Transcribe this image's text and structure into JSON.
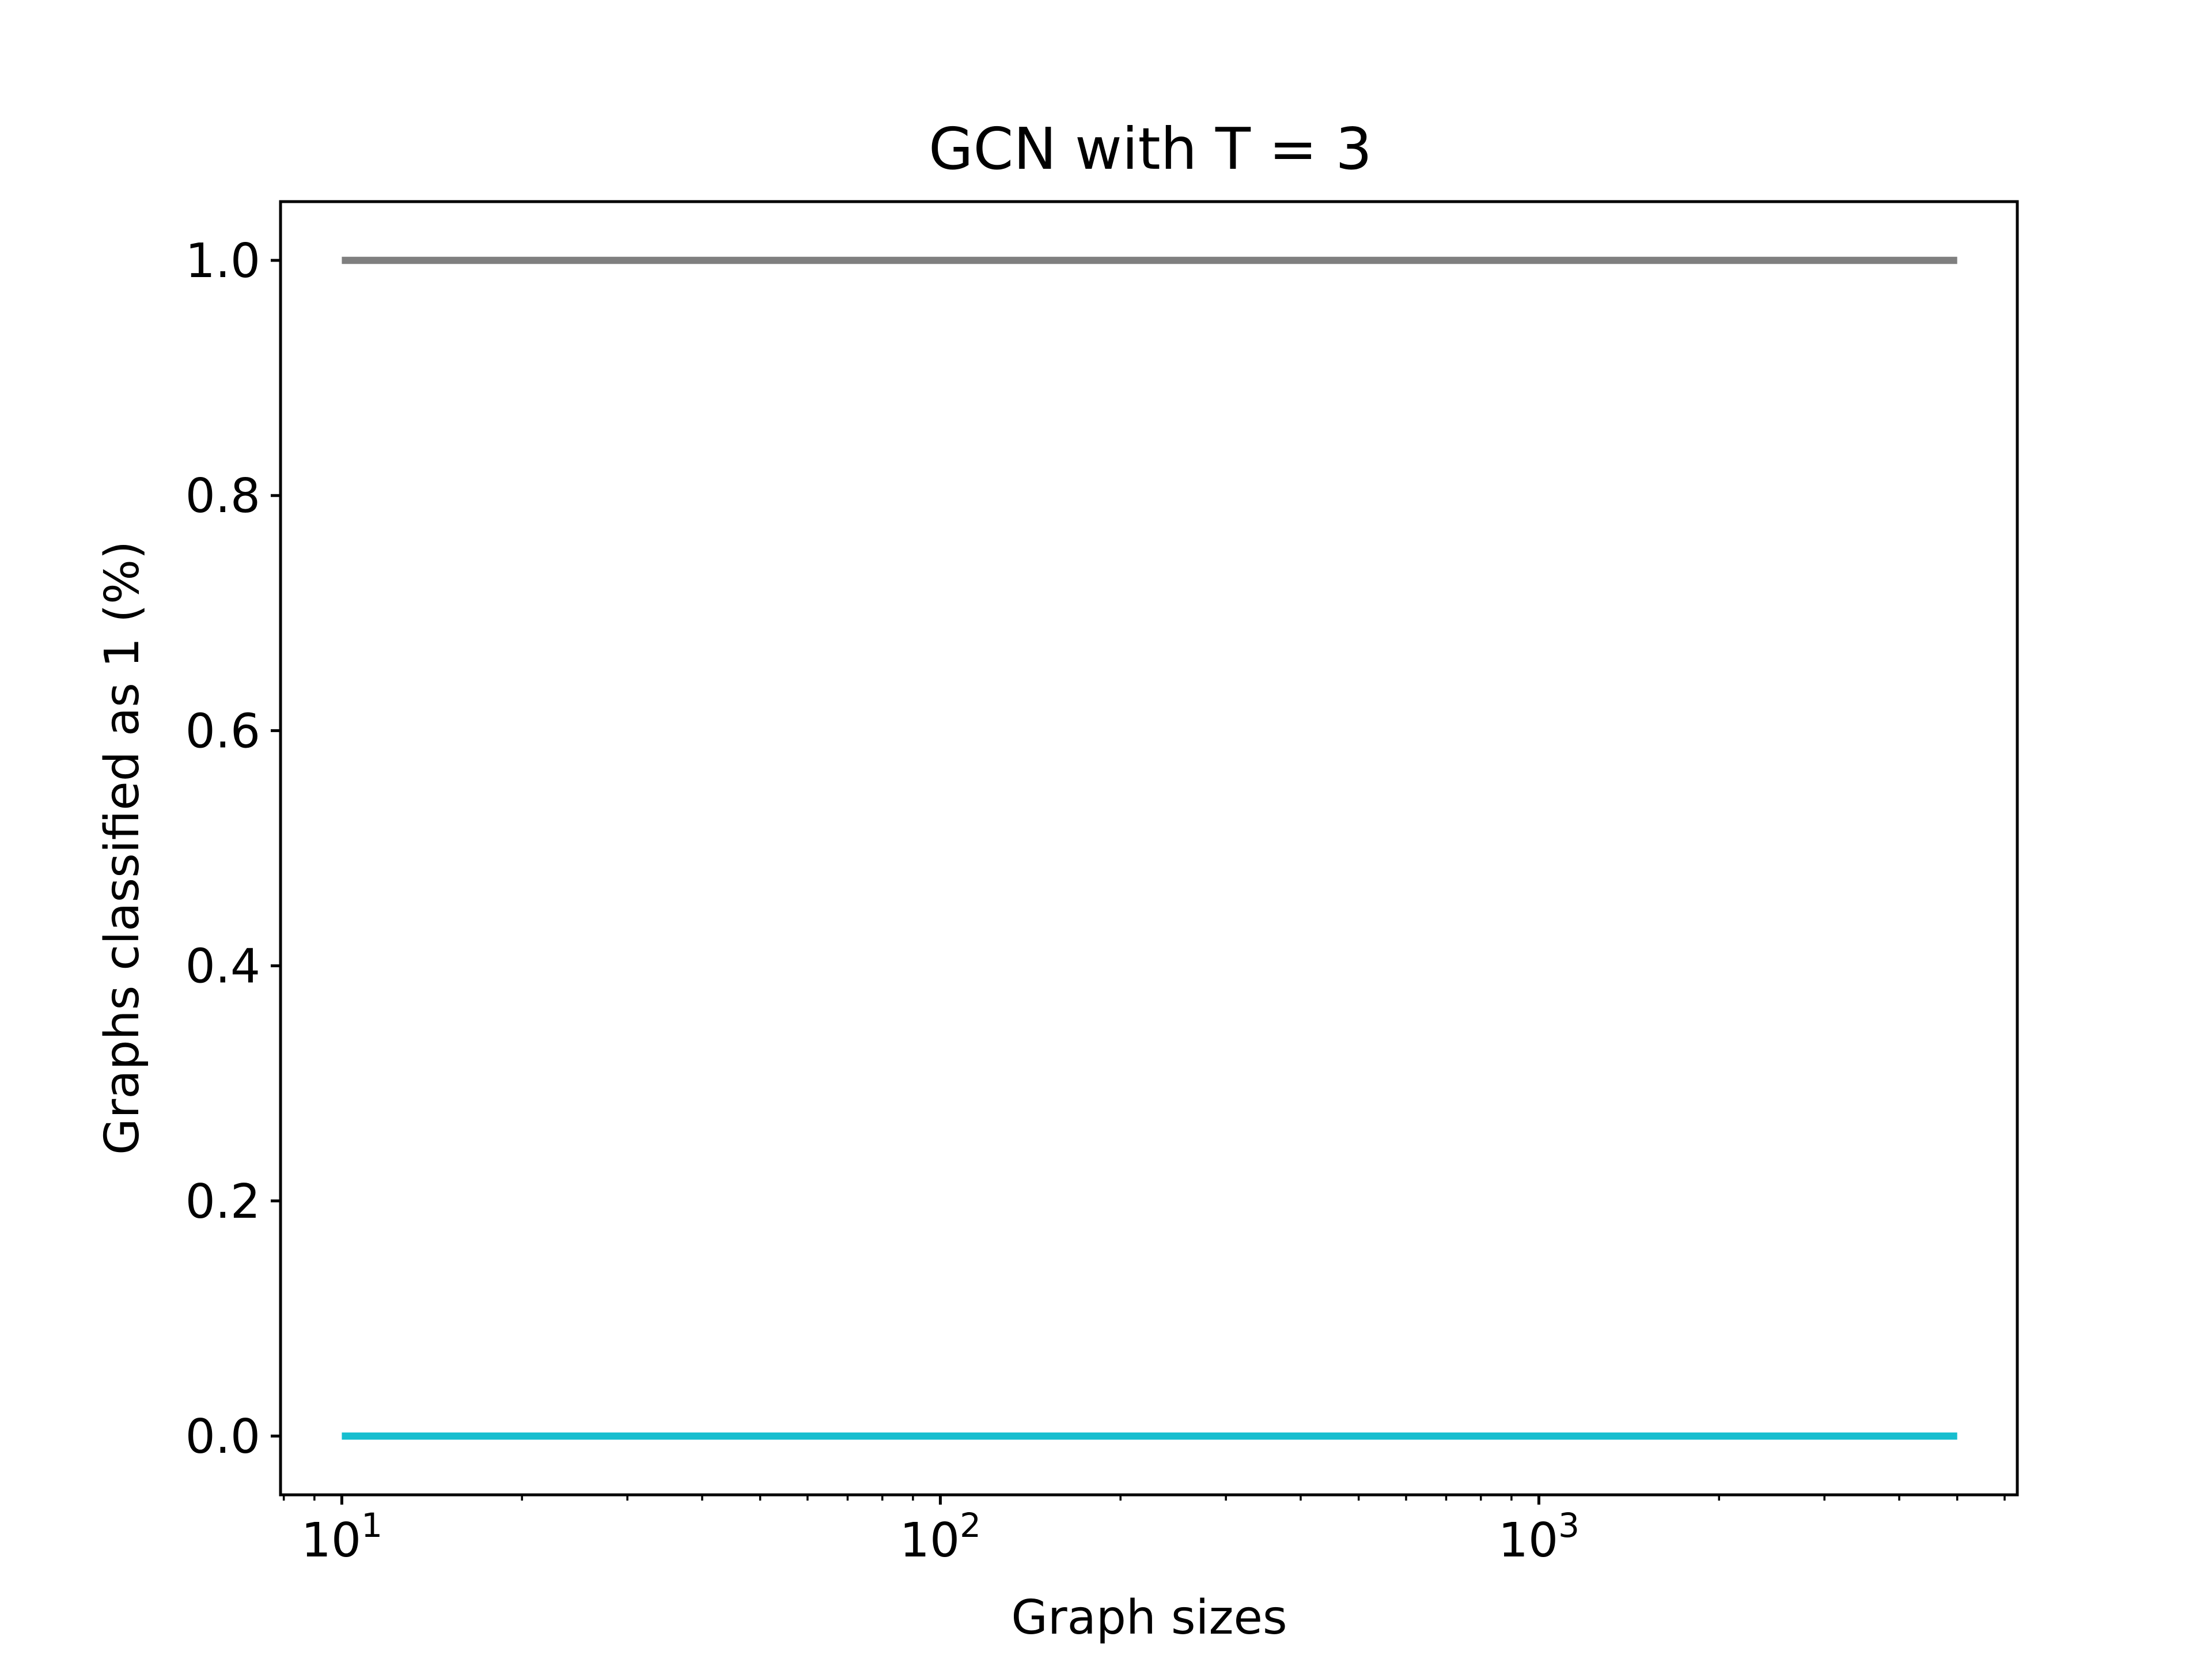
{
  "chart_data": {
    "type": "line",
    "title": "GCN with T = 3",
    "xlabel": "Graph sizes",
    "ylabel": "Graphs classified as 1 (%)",
    "xscale": "log",
    "xlim": [
      7.9,
      6300
    ],
    "ylim": [
      -0.05,
      1.05
    ],
    "x_ticks": [
      {
        "value": 10,
        "base": "10",
        "exp": "1"
      },
      {
        "value": 100,
        "base": "10",
        "exp": "2"
      },
      {
        "value": 1000,
        "base": "10",
        "exp": "3"
      }
    ],
    "y_ticks": [
      {
        "value": 0.0,
        "label": "0.0"
      },
      {
        "value": 0.2,
        "label": "0.2"
      },
      {
        "value": 0.4,
        "label": "0.4"
      },
      {
        "value": 0.6,
        "label": "0.6"
      },
      {
        "value": 0.8,
        "label": "0.8"
      },
      {
        "value": 1.0,
        "label": "1.0"
      }
    ],
    "grid": false,
    "legend": "none",
    "series": [
      {
        "color": "#7f7f7f",
        "x": [
          10,
          5000
        ],
        "y": [
          1.0,
          1.0
        ]
      },
      {
        "color": "#17becf",
        "x": [
          10,
          5000
        ],
        "y": [
          0.0,
          0.0
        ]
      }
    ]
  }
}
